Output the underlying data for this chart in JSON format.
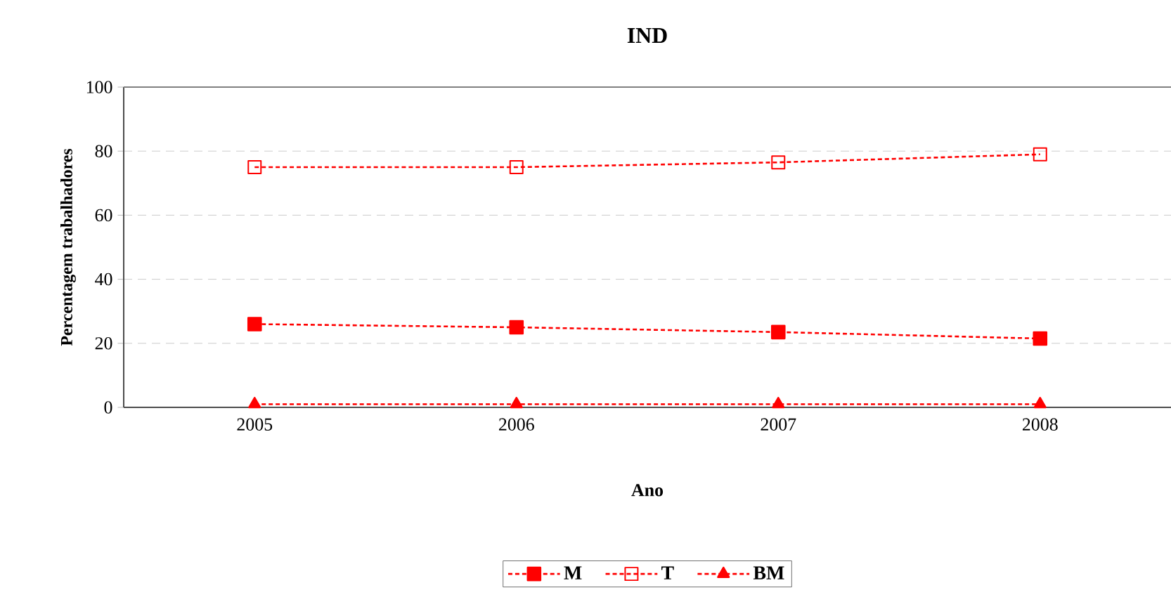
{
  "chart_data": {
    "type": "line",
    "title": "IND",
    "xlabel": "Ano",
    "ylabel": "Percentagem trabalhadores",
    "categories": [
      "2005",
      "2006",
      "2007",
      "2008"
    ],
    "series": [
      {
        "name": "M",
        "color": "#ff0000",
        "marker": "square",
        "values": [
          26,
          25,
          23.5,
          21.5
        ]
      },
      {
        "name": "T",
        "color": "#ff0000",
        "marker": "square-open",
        "values": [
          75,
          75,
          76.5,
          79
        ]
      },
      {
        "name": "BM",
        "color": "#ff0000",
        "marker": "triangle",
        "values": [
          1,
          1,
          1,
          1
        ]
      }
    ],
    "ylim": [
      0,
      100
    ],
    "yticks": [
      0,
      20,
      40,
      60,
      80,
      100
    ],
    "grid": "y",
    "legend": "bottom",
    "line_style": "dashed"
  }
}
